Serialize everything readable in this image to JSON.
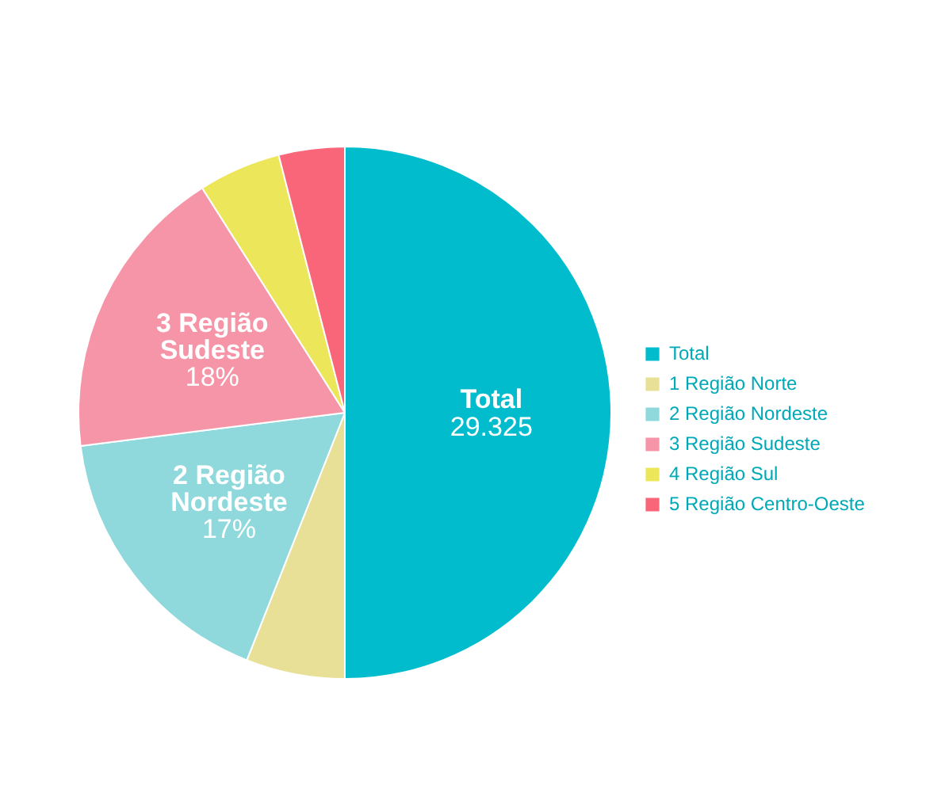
{
  "chart_data": {
    "type": "pie",
    "categories": [
      "Total",
      "1 Região Norte",
      "2 Região Nordeste",
      "3 Região Sudeste",
      "4 Região Sul",
      "5 Região Centro-Oeste"
    ],
    "values": [
      50,
      6,
      17,
      18,
      5,
      4
    ],
    "colors": [
      "#00bccd",
      "#e8e096",
      "#8fd8dc",
      "#f795a8",
      "#ece65a",
      "#f9667a"
    ],
    "value_labels": [
      null,
      null,
      "17%",
      "18%",
      null,
      null
    ],
    "annotations": [
      "29.325"
    ],
    "legend": "right"
  }
}
